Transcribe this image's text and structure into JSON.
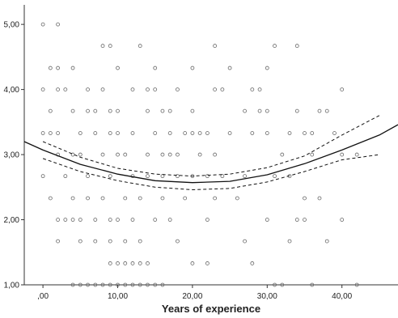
{
  "chart_data": {
    "type": "scatter",
    "title": "",
    "xlabel": "Years of experience",
    "ylabel": "",
    "xlim": [
      -2.5,
      47.5
    ],
    "ylim": [
      1,
      5.3
    ],
    "xticks": [
      {
        "value": 0,
        "label": ",00"
      },
      {
        "value": 10,
        "label": "10,00"
      },
      {
        "value": 20,
        "label": "20,00"
      },
      {
        "value": 30,
        "label": "30,00"
      },
      {
        "value": 40,
        "label": "40,00"
      }
    ],
    "yticks": [
      {
        "value": 1,
        "label": "1,00"
      },
      {
        "value": 2,
        "label": "2,00"
      },
      {
        "value": 3,
        "label": "3,00"
      },
      {
        "value": 4,
        "label": "4,00"
      },
      {
        "value": 5,
        "label": "5,00"
      }
    ],
    "grid": false,
    "legend": "none",
    "series": [
      {
        "kind": "points",
        "marker": "open-circle",
        "points": [
          [
            0,
            5.0
          ],
          [
            2,
            5.0
          ],
          [
            8,
            4.67
          ],
          [
            9,
            4.67
          ],
          [
            13,
            4.67
          ],
          [
            23,
            4.67
          ],
          [
            31,
            4.67
          ],
          [
            34,
            4.67
          ],
          [
            1,
            4.33
          ],
          [
            2,
            4.33
          ],
          [
            4,
            4.33
          ],
          [
            10,
            4.33
          ],
          [
            15,
            4.33
          ],
          [
            20,
            4.33
          ],
          [
            25,
            4.33
          ],
          [
            30,
            4.33
          ],
          [
            0,
            4.0
          ],
          [
            2,
            4.0
          ],
          [
            3,
            4.0
          ],
          [
            6,
            4.0
          ],
          [
            8,
            4.0
          ],
          [
            12,
            4.0
          ],
          [
            14,
            4.0
          ],
          [
            15,
            4.0
          ],
          [
            18,
            4.0
          ],
          [
            23,
            4.0
          ],
          [
            24,
            4.0
          ],
          [
            28,
            4.0
          ],
          [
            29,
            4.0
          ],
          [
            40,
            4.0
          ],
          [
            1,
            3.67
          ],
          [
            4,
            3.67
          ],
          [
            6,
            3.67
          ],
          [
            7,
            3.67
          ],
          [
            9,
            3.67
          ],
          [
            10,
            3.67
          ],
          [
            14,
            3.67
          ],
          [
            16,
            3.67
          ],
          [
            17,
            3.67
          ],
          [
            20,
            3.67
          ],
          [
            27,
            3.67
          ],
          [
            29,
            3.67
          ],
          [
            30,
            3.67
          ],
          [
            34,
            3.67
          ],
          [
            37,
            3.67
          ],
          [
            38,
            3.67
          ],
          [
            0,
            3.33
          ],
          [
            1,
            3.33
          ],
          [
            2,
            3.33
          ],
          [
            5,
            3.33
          ],
          [
            7,
            3.33
          ],
          [
            9,
            3.33
          ],
          [
            10,
            3.33
          ],
          [
            12,
            3.33
          ],
          [
            15,
            3.33
          ],
          [
            17,
            3.33
          ],
          [
            19,
            3.33
          ],
          [
            20,
            3.33
          ],
          [
            21,
            3.33
          ],
          [
            22,
            3.33
          ],
          [
            25,
            3.33
          ],
          [
            28,
            3.33
          ],
          [
            30,
            3.33
          ],
          [
            33,
            3.33
          ],
          [
            35,
            3.33
          ],
          [
            36,
            3.33
          ],
          [
            39,
            3.33
          ],
          [
            2,
            3.0
          ],
          [
            4,
            3.0
          ],
          [
            5,
            3.0
          ],
          [
            8,
            3.0
          ],
          [
            10,
            3.0
          ],
          [
            11,
            3.0
          ],
          [
            14,
            3.0
          ],
          [
            16,
            3.0
          ],
          [
            17,
            3.0
          ],
          [
            18,
            3.0
          ],
          [
            21,
            3.0
          ],
          [
            23,
            3.0
          ],
          [
            32,
            3.0
          ],
          [
            36,
            3.0
          ],
          [
            40,
            3.0
          ],
          [
            42,
            3.0
          ],
          [
            0,
            2.67
          ],
          [
            3,
            2.67
          ],
          [
            6,
            2.67
          ],
          [
            9,
            2.67
          ],
          [
            12,
            2.67
          ],
          [
            14,
            2.67
          ],
          [
            16,
            2.67
          ],
          [
            18,
            2.67
          ],
          [
            20,
            2.67
          ],
          [
            22,
            2.67
          ],
          [
            24,
            2.67
          ],
          [
            27,
            2.67
          ],
          [
            31,
            2.67
          ],
          [
            33,
            2.67
          ],
          [
            1,
            2.33
          ],
          [
            4,
            2.33
          ],
          [
            6,
            2.33
          ],
          [
            8,
            2.33
          ],
          [
            11,
            2.33
          ],
          [
            13,
            2.33
          ],
          [
            16,
            2.33
          ],
          [
            19,
            2.33
          ],
          [
            23,
            2.33
          ],
          [
            26,
            2.33
          ],
          [
            35,
            2.33
          ],
          [
            37,
            2.33
          ],
          [
            2,
            2.0
          ],
          [
            3,
            2.0
          ],
          [
            4,
            2.0
          ],
          [
            5,
            2.0
          ],
          [
            7,
            2.0
          ],
          [
            9,
            2.0
          ],
          [
            10,
            2.0
          ],
          [
            12,
            2.0
          ],
          [
            15,
            2.0
          ],
          [
            17,
            2.0
          ],
          [
            22,
            2.0
          ],
          [
            30,
            2.0
          ],
          [
            34,
            2.0
          ],
          [
            35,
            2.0
          ],
          [
            40,
            2.0
          ],
          [
            2,
            1.67
          ],
          [
            5,
            1.67
          ],
          [
            7,
            1.67
          ],
          [
            9,
            1.67
          ],
          [
            11,
            1.67
          ],
          [
            13,
            1.67
          ],
          [
            18,
            1.67
          ],
          [
            27,
            1.67
          ],
          [
            33,
            1.67
          ],
          [
            38,
            1.67
          ],
          [
            9,
            1.33
          ],
          [
            10,
            1.33
          ],
          [
            11,
            1.33
          ],
          [
            12,
            1.33
          ],
          [
            13,
            1.33
          ],
          [
            14,
            1.33
          ],
          [
            20,
            1.33
          ],
          [
            22,
            1.33
          ],
          [
            28,
            1.33
          ],
          [
            4,
            1.0
          ],
          [
            5,
            1.0
          ],
          [
            6,
            1.0
          ],
          [
            7,
            1.0
          ],
          [
            8,
            1.0
          ],
          [
            9,
            1.0
          ],
          [
            10,
            1.0
          ],
          [
            11,
            1.0
          ],
          [
            12,
            1.0
          ],
          [
            13,
            1.0
          ],
          [
            14,
            1.0
          ],
          [
            15,
            1.0
          ],
          [
            16,
            1.0
          ],
          [
            31,
            1.0
          ],
          [
            32,
            1.0
          ],
          [
            36,
            1.0
          ],
          [
            42,
            1.0
          ]
        ]
      },
      {
        "kind": "curve",
        "style": "solid",
        "x": [
          -2.5,
          0,
          5,
          10,
          15,
          20,
          25,
          30,
          35,
          40,
          45,
          47.5
        ],
        "values": [
          3.2,
          3.07,
          2.85,
          2.7,
          2.6,
          2.57,
          2.59,
          2.69,
          2.86,
          3.07,
          3.3,
          3.46
        ]
      },
      {
        "kind": "curve",
        "style": "dashed",
        "x": [
          0,
          5,
          10,
          15,
          20,
          25,
          30,
          35,
          40,
          45
        ],
        "values": [
          3.2,
          2.96,
          2.79,
          2.7,
          2.67,
          2.7,
          2.8,
          2.98,
          3.3,
          3.6
        ]
      },
      {
        "kind": "curve",
        "style": "dashed",
        "x": [
          0,
          5,
          10,
          15,
          20,
          25,
          30,
          35,
          40,
          45
        ],
        "values": [
          2.94,
          2.74,
          2.6,
          2.5,
          2.46,
          2.48,
          2.58,
          2.74,
          2.92,
          3.0
        ]
      }
    ]
  }
}
